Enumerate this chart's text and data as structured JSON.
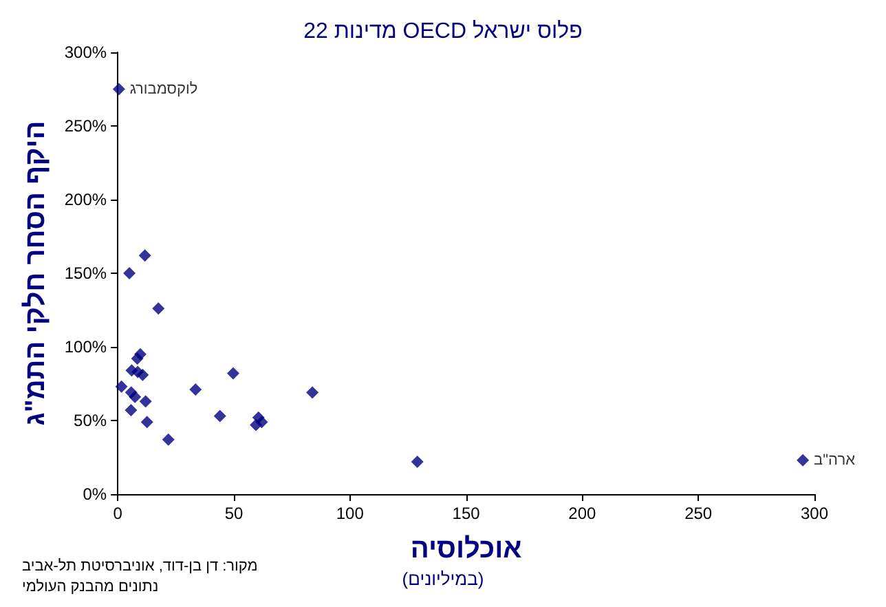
{
  "chart_data": {
    "type": "scatter",
    "title": "22 מדינות OECD פלוס ישראל",
    "xlabel": "אוכלוסיה",
    "ylabel": "היקף הסחר חלקי התמ\"ג",
    "annotations": [
      {
        "text": "לוקסמבורג",
        "x": 0.5,
        "y": 275
      },
      {
        "text": "ארה\"ב",
        "x": 295,
        "y": 23
      },
      "(במיליונים)",
      "מקור: דן בן-דוד, אוניברסיטת תל-אביב",
      "נתונים מהבנק העולמי"
    ],
    "x": [
      0.5,
      5,
      11.7,
      17.5,
      9.7,
      8.4,
      6,
      8.6,
      10.7,
      1.6,
      5.8,
      7.4,
      12,
      5.7,
      12.6,
      21.8,
      33.5,
      49.7,
      44,
      60.6,
      59.5,
      62,
      83.8,
      129,
      295
    ],
    "values": [
      275,
      150,
      162,
      126,
      95,
      92,
      84,
      83,
      81,
      73,
      69,
      66,
      63,
      57,
      49,
      37,
      71,
      82,
      53,
      52,
      47,
      49,
      69,
      22,
      23
    ],
    "color": "#000080",
    "marker": "diamond",
    "grid": false,
    "xlim": [
      0,
      300
    ],
    "xticks": [
      0,
      50,
      100,
      150,
      200,
      250,
      300
    ],
    "ylim": [
      0,
      300
    ],
    "yticks": [
      {
        "value": 0,
        "label": "0%"
      },
      {
        "value": 50,
        "label": "50%"
      },
      {
        "value": 100,
        "label": "100%"
      },
      {
        "value": 150,
        "label": "150%"
      },
      {
        "value": 200,
        "label": "200%"
      },
      {
        "value": 250,
        "label": "250%"
      },
      {
        "value": 300,
        "label": "300%"
      }
    ]
  }
}
